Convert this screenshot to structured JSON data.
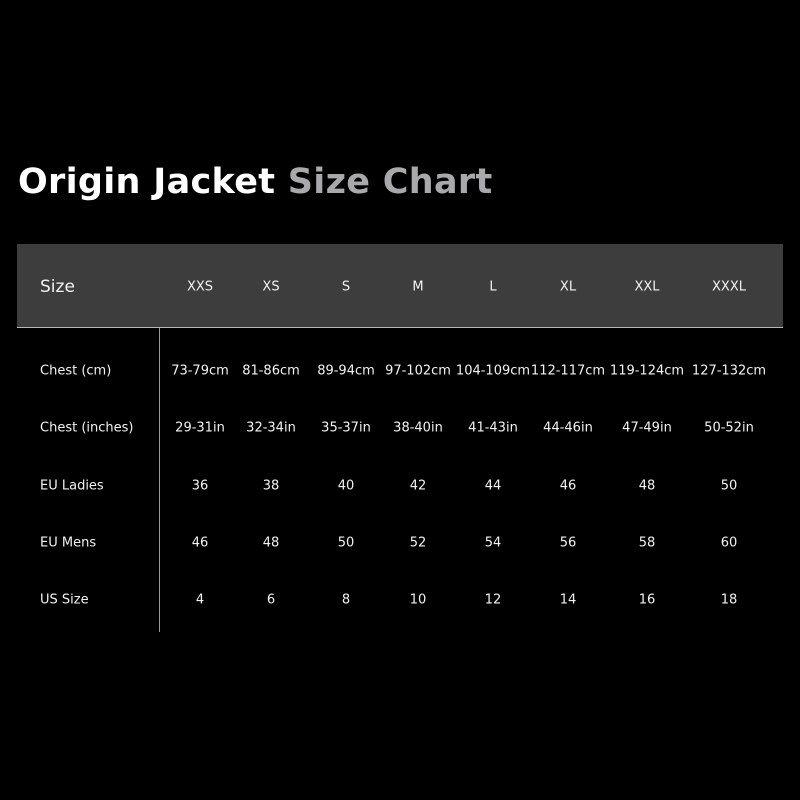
{
  "title": {
    "bold_part": "Origin Jacket",
    "gray_part": "Size Chart"
  },
  "colors": {
    "background": "#000000",
    "header_band": "#3d3d3d",
    "title_gray": "#a9a9ad",
    "text": "#f2f2f2"
  },
  "table": {
    "header_label": "Size",
    "sizes": [
      "XXS",
      "XS",
      "S",
      "M",
      "L",
      "XL",
      "XXL",
      "XXXL"
    ],
    "rows": [
      {
        "label": "Chest (cm)",
        "values": [
          "73-79cm",
          "81-86cm",
          "89-94cm",
          "97-102cm",
          "104-109cm",
          "112-117cm",
          "119-124cm",
          "127-132cm"
        ]
      },
      {
        "label": "Chest (inches)",
        "values": [
          "29-31in",
          "32-34in",
          "35-37in",
          "38-40in",
          "41-43in",
          "44-46in",
          "47-49in",
          "50-52in"
        ]
      },
      {
        "label": "EU Ladies",
        "values": [
          "36",
          "38",
          "40",
          "42",
          "44",
          "46",
          "48",
          "50"
        ]
      },
      {
        "label": "EU Mens",
        "values": [
          "46",
          "48",
          "50",
          "52",
          "54",
          "56",
          "58",
          "60"
        ]
      },
      {
        "label": "US Size",
        "values": [
          "4",
          "6",
          "8",
          "10",
          "12",
          "14",
          "16",
          "18"
        ]
      }
    ]
  }
}
